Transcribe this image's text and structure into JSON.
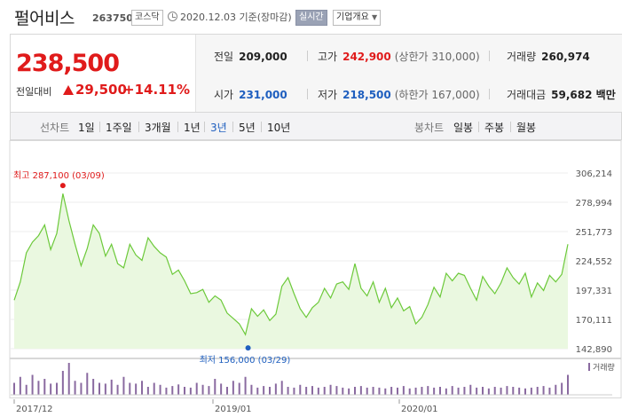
{
  "header": {
    "title": "펄어비스",
    "code": "263750",
    "market": "코스닥",
    "date": "2020.12.03 기준(장마감)",
    "realtime": "실시간",
    "company_info": "기업개요"
  },
  "price": {
    "current": "238,500",
    "change_label": "전일대비",
    "change": "29,500",
    "change_pct": "+14.11%",
    "up_color": "#e01b1b",
    "down_color": "#1f5fbf"
  },
  "stats": {
    "prev_label": "전일",
    "prev": "209,000",
    "high_label": "고가",
    "high": "242,900",
    "upper_limit": "(상한가 310,000)",
    "volume_label": "거래량",
    "volume": "260,974",
    "open_label": "시가",
    "open": "231,000",
    "low_label": "저가",
    "low": "218,500",
    "lower_limit": "(하한가 167,000)",
    "amount_label": "거래대금",
    "amount": "59,682 백만"
  },
  "period": {
    "line_label": "선차트",
    "line_options": [
      "1일",
      "1주일",
      "3개월",
      "1년",
      "3년",
      "5년",
      "10년"
    ],
    "line_selected": "3년",
    "candle_label": "봉차트",
    "candle_options": [
      "일봉",
      "주봉",
      "월봉"
    ]
  },
  "chart_data": {
    "type": "area",
    "y_ticks": [
      "306,214",
      "278,994",
      "251,773",
      "224,552",
      "197,331",
      "170,111",
      "142,890"
    ],
    "ylim": [
      142890,
      306214
    ],
    "x_ticks": [
      "2017/12",
      "2019/01",
      "2020/01"
    ],
    "max_label": "최고 287,100 (03/09)",
    "min_label": "최저 156,000 (03/29)",
    "max_value": 287100,
    "min_value": 156000,
    "volume_label": "거래량",
    "line_color": "#6cc93a",
    "fill_color": "#eaf8e0",
    "volume_color": "#8a6aa0",
    "values": [
      188000,
      205000,
      232000,
      242000,
      248000,
      258000,
      235000,
      250000,
      287100,
      262000,
      240000,
      220000,
      236000,
      258000,
      250000,
      229000,
      240000,
      222000,
      218000,
      240000,
      230000,
      225000,
      246000,
      238000,
      232000,
      228000,
      212000,
      216000,
      206000,
      194000,
      195000,
      198000,
      186000,
      192000,
      188000,
      176000,
      171000,
      166000,
      156000,
      180000,
      173000,
      179000,
      169000,
      175000,
      201000,
      209000,
      194000,
      180000,
      172000,
      181000,
      186000,
      199000,
      190000,
      203000,
      205000,
      198000,
      222000,
      199000,
      192000,
      205000,
      186000,
      199000,
      181000,
      190000,
      178000,
      182000,
      166000,
      172000,
      184000,
      200000,
      191000,
      213000,
      206000,
      213000,
      211000,
      199000,
      188000,
      210000,
      201000,
      194000,
      204000,
      218000,
      209000,
      203000,
      213000,
      191000,
      204000,
      197000,
      211000,
      205000,
      212000,
      240000
    ],
    "volumes": [
      30,
      45,
      25,
      50,
      35,
      40,
      28,
      30,
      60,
      80,
      35,
      30,
      55,
      40,
      30,
      28,
      38,
      25,
      45,
      30,
      28,
      35,
      20,
      30,
      25,
      18,
      22,
      26,
      20,
      18,
      30,
      25,
      22,
      40,
      28,
      20,
      35,
      30,
      45,
      25,
      18,
      22,
      20,
      28,
      35,
      20,
      18,
      25,
      20,
      22,
      18,
      20,
      25,
      22,
      18,
      16,
      20,
      22,
      18,
      20,
      18,
      16,
      20,
      18,
      22,
      16,
      18,
      20,
      22,
      18,
      20,
      16,
      22,
      18,
      20,
      25,
      18,
      20,
      16,
      20,
      18,
      22,
      20,
      18,
      16,
      18,
      20,
      22,
      18,
      25,
      30,
      50
    ]
  }
}
